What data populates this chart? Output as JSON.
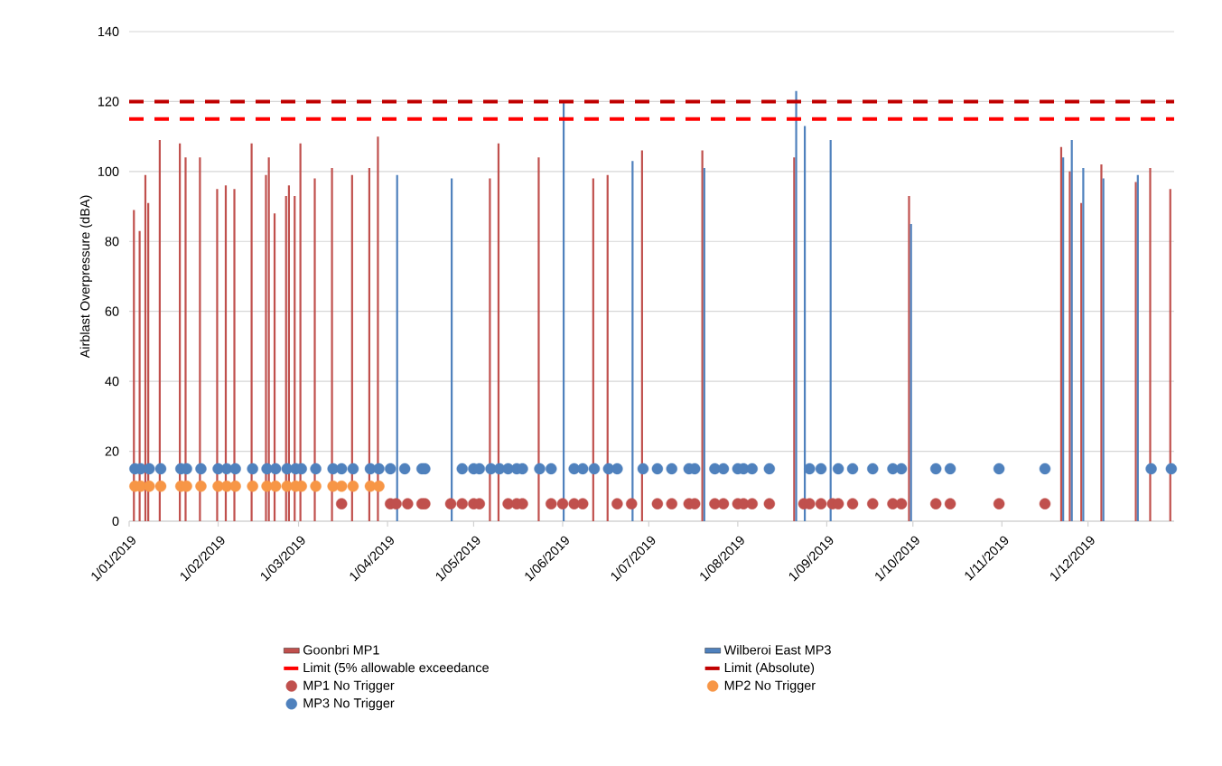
{
  "chart_data": {
    "type": "bar",
    "ylabel": "Airblast Overpressure (dBA)",
    "xlim": [
      "2019-01-01",
      "2019-12-31"
    ],
    "xticks": [
      {
        "value": "2019-01-01",
        "label": "1/01/2019"
      },
      {
        "value": "2019-02-01",
        "label": "1/02/2019"
      },
      {
        "value": "2019-03-01",
        "label": "1/03/2019"
      },
      {
        "value": "2019-04-01",
        "label": "1/04/2019"
      },
      {
        "value": "2019-05-01",
        "label": "1/05/2019"
      },
      {
        "value": "2019-06-01",
        "label": "1/06/2019"
      },
      {
        "value": "2019-07-01",
        "label": "1/07/2019"
      },
      {
        "value": "2019-08-01",
        "label": "1/08/2019"
      },
      {
        "value": "2019-09-01",
        "label": "1/09/2019"
      },
      {
        "value": "2019-10-01",
        "label": "1/10/2019"
      },
      {
        "value": "2019-11-01",
        "label": "1/11/2019"
      },
      {
        "value": "2019-12-01",
        "label": "1/12/2019"
      }
    ],
    "ylim": [
      0,
      140
    ],
    "yticks": [
      0,
      20,
      40,
      60,
      80,
      100,
      120,
      140
    ],
    "grid": "y",
    "legend": "bottom",
    "series": [
      {
        "name": "Goonbri MP1",
        "color": "#c0504d",
        "x": [
          "2019-01-03",
          "2019-01-05",
          "2019-01-07",
          "2019-01-08",
          "2019-01-12",
          "2019-01-19",
          "2019-01-21",
          "2019-01-26",
          "2019-02-01",
          "2019-02-04",
          "2019-02-07",
          "2019-02-13",
          "2019-02-18",
          "2019-02-19",
          "2019-02-21",
          "2019-02-25",
          "2019-02-26",
          "2019-02-28",
          "2019-03-02",
          "2019-03-07",
          "2019-03-13",
          "2019-03-20",
          "2019-03-26",
          "2019-03-29",
          "2019-05-07",
          "2019-05-10",
          "2019-05-24",
          "2019-06-12",
          "2019-06-17",
          "2019-06-29",
          "2019-07-20",
          "2019-08-21",
          "2019-09-30",
          "2019-11-22",
          "2019-11-25",
          "2019-11-29",
          "2019-12-06",
          "2019-12-18",
          "2019-12-23",
          "2019-12-30"
        ],
        "values": [
          89,
          83,
          99,
          91,
          109,
          108,
          104,
          104,
          95,
          96,
          95,
          108,
          99,
          104,
          88,
          93,
          96,
          93,
          108,
          98,
          101,
          99,
          101,
          110,
          98,
          108,
          104,
          98,
          99,
          106,
          106,
          104,
          93,
          107,
          100,
          91,
          102,
          97,
          101,
          95
        ]
      },
      {
        "name": "Wilberoi East MP3",
        "color": "#4f81bd",
        "x": [
          "2019-04-04",
          "2019-04-23",
          "2019-06-01",
          "2019-06-25",
          "2019-07-20",
          "2019-08-21",
          "2019-08-24",
          "2019-09-02",
          "2019-09-30",
          "2019-11-22",
          "2019-11-25",
          "2019-11-29",
          "2019-12-06",
          "2019-12-18"
        ],
        "values": [
          99,
          98,
          120,
          103,
          101,
          123,
          113,
          109,
          85,
          104,
          109,
          101,
          98,
          99
        ]
      },
      {
        "name": "Limit (5% allowable exceedance",
        "type": "line",
        "color": "#ff0000",
        "line_style": "dashed",
        "x": [
          "2019-01-01",
          "2019-12-31"
        ],
        "values": [
          115,
          115
        ]
      },
      {
        "name": "Limit (Absolute)",
        "type": "line",
        "color": "#c00000",
        "line_style": "dashed",
        "x": [
          "2019-01-01",
          "2019-12-31"
        ],
        "values": [
          120,
          120
        ]
      },
      {
        "name": "MP1 No Trigger",
        "type": "scatter",
        "marker": "circle",
        "color": "#c0504d",
        "x": [
          "2019-03-16",
          "2019-04-02",
          "2019-04-04",
          "2019-04-08",
          "2019-04-13",
          "2019-04-14",
          "2019-04-23",
          "2019-04-27",
          "2019-05-01",
          "2019-05-03",
          "2019-05-13",
          "2019-05-16",
          "2019-05-18",
          "2019-05-28",
          "2019-06-01",
          "2019-06-05",
          "2019-06-08",
          "2019-06-20",
          "2019-06-25",
          "2019-07-04",
          "2019-07-09",
          "2019-07-15",
          "2019-07-17",
          "2019-07-24",
          "2019-07-27",
          "2019-08-01",
          "2019-08-03",
          "2019-08-06",
          "2019-08-12",
          "2019-08-24",
          "2019-08-26",
          "2019-08-30",
          "2019-09-03",
          "2019-09-05",
          "2019-09-10",
          "2019-09-17",
          "2019-09-24",
          "2019-09-27",
          "2019-10-09",
          "2019-10-14",
          "2019-10-31",
          "2019-11-16"
        ],
        "values": [
          5,
          5,
          5,
          5,
          5,
          5,
          5,
          5,
          5,
          5,
          5,
          5,
          5,
          5,
          5,
          5,
          5,
          5,
          5,
          5,
          5,
          5,
          5,
          5,
          5,
          5,
          5,
          5,
          5,
          5,
          5,
          5,
          5,
          5,
          5,
          5,
          5,
          5,
          5,
          5,
          5,
          5
        ]
      },
      {
        "name": "MP2 No Trigger",
        "type": "scatter",
        "marker": "circle",
        "color": "#f79646",
        "x": [
          "2019-01-03",
          "2019-01-05",
          "2019-01-08",
          "2019-01-12",
          "2019-01-19",
          "2019-01-21",
          "2019-01-26",
          "2019-02-01",
          "2019-02-04",
          "2019-02-07",
          "2019-02-13",
          "2019-02-18",
          "2019-02-21",
          "2019-02-25",
          "2019-02-28",
          "2019-03-02",
          "2019-03-07",
          "2019-03-13",
          "2019-03-16",
          "2019-03-20",
          "2019-03-26",
          "2019-03-29"
        ],
        "values": [
          10,
          10,
          10,
          10,
          10,
          10,
          10,
          10,
          10,
          10,
          10,
          10,
          10,
          10,
          10,
          10,
          10,
          10,
          10,
          10,
          10,
          10
        ]
      },
      {
        "name": "MP3 No Trigger",
        "type": "scatter",
        "marker": "circle",
        "color": "#4f81bd",
        "x": [
          "2019-01-03",
          "2019-01-05",
          "2019-01-08",
          "2019-01-12",
          "2019-01-19",
          "2019-01-21",
          "2019-01-26",
          "2019-02-01",
          "2019-02-04",
          "2019-02-07",
          "2019-02-13",
          "2019-02-18",
          "2019-02-21",
          "2019-02-25",
          "2019-02-28",
          "2019-03-02",
          "2019-03-07",
          "2019-03-13",
          "2019-03-16",
          "2019-03-20",
          "2019-03-26",
          "2019-03-29",
          "2019-04-02",
          "2019-04-07",
          "2019-04-13",
          "2019-04-14",
          "2019-04-27",
          "2019-05-01",
          "2019-05-03",
          "2019-05-07",
          "2019-05-10",
          "2019-05-13",
          "2019-05-16",
          "2019-05-18",
          "2019-05-24",
          "2019-05-28",
          "2019-06-05",
          "2019-06-08",
          "2019-06-12",
          "2019-06-17",
          "2019-06-20",
          "2019-06-29",
          "2019-07-04",
          "2019-07-09",
          "2019-07-15",
          "2019-07-17",
          "2019-07-24",
          "2019-07-27",
          "2019-08-01",
          "2019-08-03",
          "2019-08-06",
          "2019-08-12",
          "2019-08-26",
          "2019-08-30",
          "2019-09-05",
          "2019-09-10",
          "2019-09-17",
          "2019-09-24",
          "2019-09-27",
          "2019-10-09",
          "2019-10-14",
          "2019-10-31",
          "2019-11-16",
          "2019-12-23",
          "2019-12-30"
        ],
        "values": [
          15,
          15,
          15,
          15,
          15,
          15,
          15,
          15,
          15,
          15,
          15,
          15,
          15,
          15,
          15,
          15,
          15,
          15,
          15,
          15,
          15,
          15,
          15,
          15,
          15,
          15,
          15,
          15,
          15,
          15,
          15,
          15,
          15,
          15,
          15,
          15,
          15,
          15,
          15,
          15,
          15,
          15,
          15,
          15,
          15,
          15,
          15,
          15,
          15,
          15,
          15,
          15,
          15,
          15,
          15,
          15,
          15,
          15,
          15,
          15,
          15,
          15,
          15,
          15,
          15
        ]
      }
    ]
  }
}
